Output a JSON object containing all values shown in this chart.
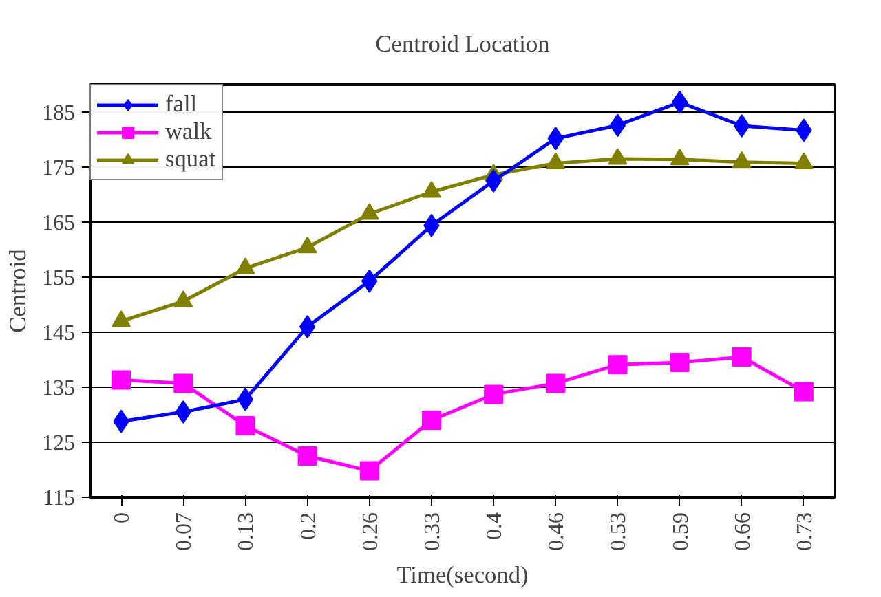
{
  "chart_data": {
    "type": "line",
    "title": "Centroid Location",
    "xlabel": "Time(second)",
    "ylabel": "Centroid",
    "categories": [
      "0",
      "0.07",
      "0.13",
      "0.2",
      "0.26",
      "0.33",
      "0.4",
      "0.46",
      "0.53",
      "0.59",
      "0.66",
      "0.73"
    ],
    "series": [
      {
        "name": "fall",
        "color": "#0000ff",
        "marker": "diamond",
        "values": [
          128.8,
          130.5,
          132.8,
          146,
          154.3,
          164.4,
          172.5,
          180.2,
          182.6,
          186.8,
          182.5,
          181.7
        ]
      },
      {
        "name": "walk",
        "color": "#ff00ff",
        "marker": "square",
        "values": [
          136.3,
          135.7,
          128,
          122.5,
          119.8,
          129,
          133.7,
          135.7,
          139.1,
          139.5,
          140.5,
          134.2
        ]
      },
      {
        "name": "squat",
        "color": "#808000",
        "marker": "triangle",
        "values": [
          147,
          150.6,
          156.6,
          160.4,
          166.5,
          170.5,
          173.6,
          175.7,
          176.5,
          176.4,
          175.9,
          175.7
        ]
      }
    ],
    "ylim": [
      115,
      190
    ],
    "yticks": [
      115,
      125,
      135,
      145,
      155,
      165,
      175,
      185
    ],
    "grid": "y",
    "legend": "top left",
    "line_style": "solid"
  }
}
